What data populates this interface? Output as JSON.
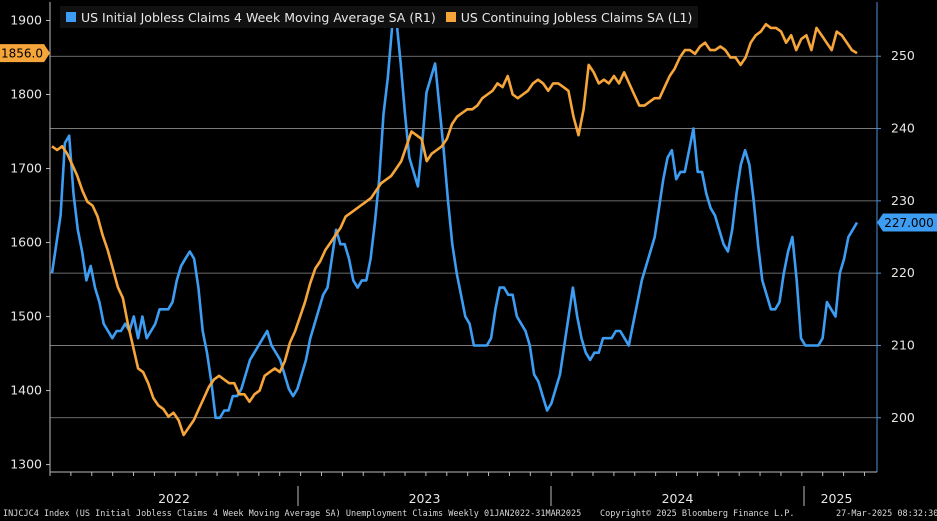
{
  "colors": {
    "background": "#000000",
    "grid": "#8c8c8c",
    "blue": "#3d9df3",
    "orange": "#f6a53a",
    "axis_text": "#e6e6e6"
  },
  "chart_data": {
    "type": "line",
    "title": "",
    "x_labels": [
      "2022",
      "2023",
      "2024",
      "2025"
    ],
    "y_left": {
      "ticks": [
        1300,
        1400,
        1500,
        1600,
        1700,
        1800,
        1900
      ],
      "ylim": [
        1290,
        1925
      ]
    },
    "y_right": {
      "ticks": [
        200,
        210,
        220,
        230,
        240,
        250
      ],
      "ylim": [
        192.5,
        257.5
      ]
    },
    "series": [
      {
        "name": "US Initial Jobless Claims 4 Week Moving Average SA (R1)",
        "axis": "right",
        "color": "#3d9df3",
        "last_value": "227.000",
        "values": [
          220,
          224,
          228,
          238,
          239,
          231,
          226,
          223,
          219,
          221,
          218,
          216,
          213,
          212,
          211,
          212,
          212,
          213,
          212,
          214,
          211,
          214,
          211,
          212,
          213,
          215,
          215,
          215,
          216,
          219,
          221,
          222,
          223,
          222,
          218,
          212,
          209,
          205,
          200,
          200,
          201,
          201,
          203,
          203,
          204,
          206,
          208,
          209,
          210,
          211,
          212,
          210,
          209,
          208,
          206,
          204,
          203,
          204,
          206,
          208,
          211,
          213,
          215,
          217,
          218,
          222,
          226,
          224,
          224,
          222,
          219,
          218,
          219,
          219,
          222,
          227,
          233,
          242,
          247,
          254,
          255,
          249,
          242,
          236,
          234,
          232,
          238,
          245,
          247,
          249,
          243,
          237,
          230,
          224,
          220,
          217,
          214,
          213,
          210,
          210,
          210,
          210,
          211,
          215,
          218,
          218,
          217,
          217,
          214,
          213,
          212,
          210,
          206,
          205,
          203,
          201,
          202,
          204,
          206,
          210,
          214,
          218,
          214,
          211,
          209,
          208,
          209,
          209,
          211,
          211,
          211,
          212,
          212,
          211,
          210,
          213,
          216,
          219,
          221,
          223,
          225,
          229,
          233,
          236,
          237,
          233,
          234,
          234,
          237,
          240,
          234,
          234,
          231,
          229,
          228,
          226,
          224,
          223,
          226,
          231,
          235,
          237,
          235,
          230,
          224,
          219,
          217,
          215,
          215,
          216,
          220,
          223,
          225,
          219,
          211,
          210,
          210,
          210,
          210,
          211,
          216,
          215,
          214,
          220,
          222,
          225,
          226,
          227
        ]
      },
      {
        "name": "US Continuing Jobless Claims SA (L1)",
        "axis": "left",
        "color": "#f6a53a",
        "last_value": "1856.0",
        "values": [
          1730,
          1725,
          1730,
          1720,
          1705,
          1690,
          1670,
          1655,
          1650,
          1635,
          1610,
          1590,
          1565,
          1540,
          1525,
          1490,
          1460,
          1430,
          1425,
          1410,
          1390,
          1380,
          1375,
          1365,
          1370,
          1360,
          1340,
          1350,
          1360,
          1375,
          1390,
          1405,
          1415,
          1420,
          1415,
          1410,
          1410,
          1395,
          1395,
          1385,
          1395,
          1400,
          1420,
          1425,
          1430,
          1425,
          1440,
          1465,
          1480,
          1500,
          1520,
          1545,
          1565,
          1575,
          1590,
          1600,
          1610,
          1620,
          1635,
          1640,
          1645,
          1650,
          1655,
          1660,
          1670,
          1680,
          1685,
          1690,
          1700,
          1710,
          1730,
          1750,
          1745,
          1740,
          1710,
          1720,
          1725,
          1730,
          1740,
          1760,
          1770,
          1775,
          1780,
          1780,
          1785,
          1795,
          1800,
          1805,
          1815,
          1810,
          1825,
          1800,
          1795,
          1800,
          1805,
          1815,
          1820,
          1815,
          1805,
          1815,
          1815,
          1810,
          1805,
          1770,
          1745,
          1780,
          1840,
          1830,
          1815,
          1820,
          1815,
          1825,
          1815,
          1830,
          1815,
          1800,
          1785,
          1785,
          1790,
          1795,
          1795,
          1810,
          1825,
          1835,
          1850,
          1860,
          1860,
          1855,
          1865,
          1870,
          1860,
          1860,
          1865,
          1860,
          1850,
          1850,
          1840,
          1850,
          1870,
          1880,
          1885,
          1895,
          1890,
          1890,
          1885,
          1870,
          1880,
          1860,
          1875,
          1880,
          1860,
          1890,
          1880,
          1870,
          1860,
          1885,
          1880,
          1870,
          1860,
          1856
        ]
      }
    ],
    "legend": [
      "US Initial Jobless Claims 4 Week Moving Average SA  (R1)",
      "US Continuing Jobless Claims SA  (L1)"
    ]
  },
  "footer": {
    "left": "INJCJC4 Index (US Initial Jobless Claims 4 Week Moving Average SA) Unemployment Claims  Weekly 01JAN2022-31MAR2025",
    "center": "Copyright© 2025 Bloomberg Finance L.P.",
    "right": "27-Mar-2025 08:32:30"
  }
}
